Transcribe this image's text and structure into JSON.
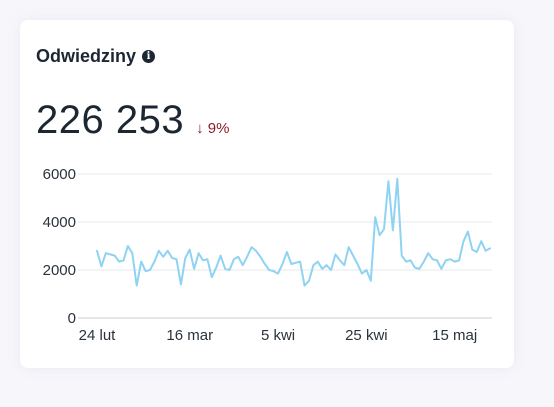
{
  "widget": {
    "title": "Odwiedziny",
    "info_icon": "info-icon",
    "total": "226 253",
    "change": "↓ 9%",
    "change_color": "#8a1f2b",
    "line_color": "#8fd3f2"
  },
  "chart_data": {
    "type": "line",
    "title": "",
    "xlabel": "",
    "ylabel": "",
    "ylim": [
      0,
      6000
    ],
    "yticks": [
      0,
      2000,
      4000,
      6000
    ],
    "grid": true,
    "xtick_labels": [
      "24 lut",
      "16 mar",
      "5 kwi",
      "25 kwi",
      "15 maj"
    ],
    "xtick_index": [
      0,
      21,
      41,
      61,
      81
    ],
    "series": [
      {
        "values": [
          2800,
          2150,
          2700,
          2650,
          2600,
          2350,
          2400,
          3000,
          2700,
          1350,
          2350,
          1950,
          2000,
          2350,
          2800,
          2550,
          2800,
          2500,
          2450,
          1400,
          2500,
          2850,
          2050,
          2700,
          2400,
          2450,
          1700,
          2100,
          2600,
          2050,
          2000,
          2450,
          2550,
          2200,
          2550,
          2950,
          2800,
          2550,
          2250,
          2000,
          1950,
          1850,
          2250,
          2750,
          2250,
          2300,
          2350,
          1350,
          1550,
          2200,
          2350,
          2050,
          2200,
          2000,
          2650,
          2400,
          2200,
          2950,
          2600,
          2250,
          1850,
          2000,
          1550,
          4200,
          3450,
          3700,
          5700,
          3650,
          5800,
          2600,
          2350,
          2400,
          2100,
          2050,
          2350,
          2700,
          2450,
          2400,
          2050,
          2400,
          2450,
          2350,
          2400,
          3200,
          3600,
          2850,
          2750,
          3200,
          2800,
          2900
        ]
      }
    ]
  }
}
